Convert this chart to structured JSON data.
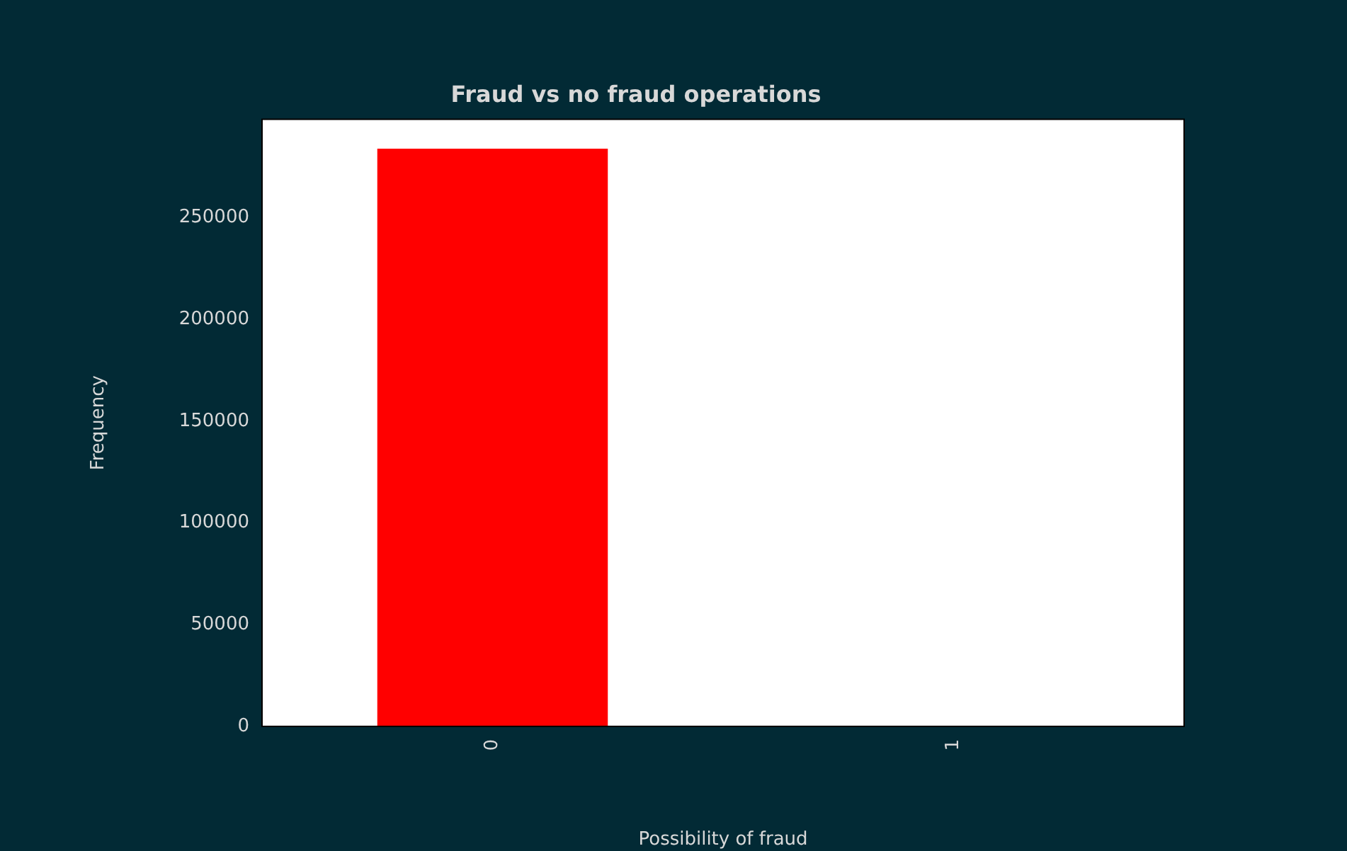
{
  "chart_data": {
    "type": "bar",
    "title": "Fraud vs no fraud operations",
    "xlabel": "Possibility of fraud",
    "ylabel": "Frequency",
    "categories": [
      "0",
      "1"
    ],
    "values": [
      284000,
      null
    ],
    "color": "#ff0000",
    "ylim": [
      0,
      298500
    ],
    "yticks": [
      0,
      50000,
      100000,
      150000,
      200000,
      250000
    ],
    "grid": false,
    "legend": false
  }
}
